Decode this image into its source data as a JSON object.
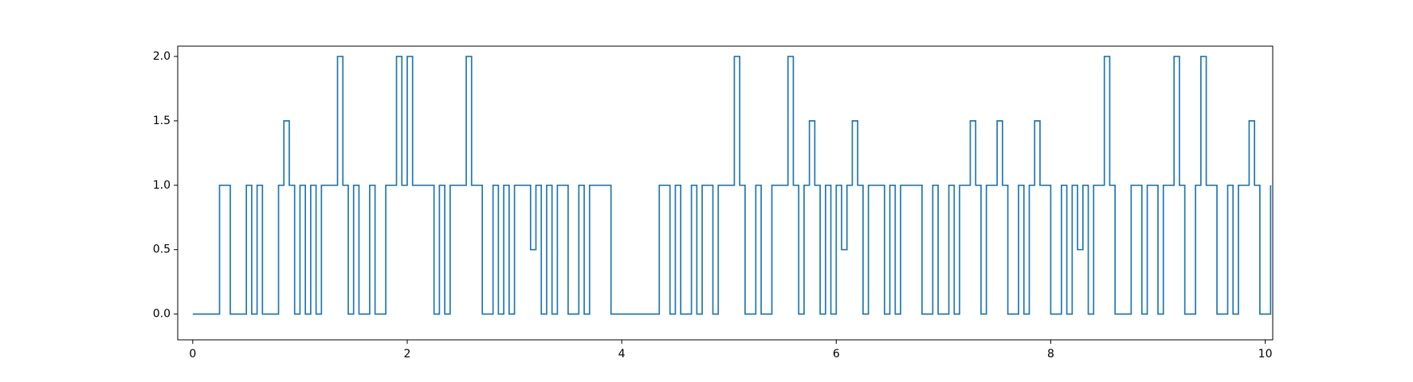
{
  "chart_data": {
    "type": "line",
    "step": "post",
    "color": "#1f77b4",
    "grid": false,
    "xlim": [
      -0.14,
      10.07
    ],
    "ylim": [
      -0.2,
      2.08
    ],
    "xticks": [
      0,
      2,
      4,
      6,
      8,
      10
    ],
    "yticks": [
      {
        "value": 0,
        "label": "0.0"
      },
      {
        "value": 0.5,
        "label": "0.5"
      },
      {
        "value": 1,
        "label": "1.0"
      },
      {
        "value": 1.5,
        "label": "1.5"
      },
      {
        "value": 2,
        "label": "2.0"
      }
    ],
    "x": [
      0,
      0.05,
      0.1,
      0.15,
      0.2,
      0.25,
      0.3,
      0.35,
      0.4,
      0.45,
      0.5,
      0.55,
      0.6,
      0.65,
      0.7,
      0.75,
      0.8,
      0.85,
      0.9,
      0.95,
      1,
      1.05,
      1.1,
      1.15,
      1.2,
      1.25,
      1.3,
      1.35,
      1.4,
      1.45,
      1.5,
      1.55,
      1.6,
      1.65,
      1.7,
      1.75,
      1.8,
      1.85,
      1.9,
      1.95,
      2,
      2.05,
      2.1,
      2.15,
      2.2,
      2.25,
      2.3,
      2.35,
      2.4,
      2.45,
      2.5,
      2.55,
      2.6,
      2.65,
      2.7,
      2.75,
      2.8,
      2.85,
      2.9,
      2.95,
      3,
      3.05,
      3.1,
      3.15,
      3.2,
      3.25,
      3.3,
      3.35,
      3.4,
      3.45,
      3.5,
      3.55,
      3.6,
      3.65,
      3.7,
      3.75,
      3.8,
      3.85,
      3.9,
      3.95,
      4,
      4.05,
      4.1,
      4.15,
      4.2,
      4.25,
      4.3,
      4.35,
      4.4,
      4.45,
      4.5,
      4.55,
      4.6,
      4.65,
      4.7,
      4.75,
      4.8,
      4.85,
      4.9,
      4.95,
      5,
      5.05,
      5.1,
      5.15,
      5.2,
      5.25,
      5.3,
      5.35,
      5.4,
      5.45,
      5.5,
      5.55,
      5.6,
      5.65,
      5.7,
      5.75,
      5.8,
      5.85,
      5.9,
      5.95,
      6,
      6.05,
      6.1,
      6.15,
      6.2,
      6.25,
      6.3,
      6.35,
      6.4,
      6.45,
      6.5,
      6.55,
      6.6,
      6.65,
      6.7,
      6.75,
      6.8,
      6.85,
      6.9,
      6.95,
      7,
      7.05,
      7.1,
      7.15,
      7.2,
      7.25,
      7.3,
      7.35,
      7.4,
      7.45,
      7.5,
      7.55,
      7.6,
      7.65,
      7.7,
      7.75,
      7.8,
      7.85,
      7.9,
      7.95,
      8,
      8.05,
      8.1,
      8.15,
      8.2,
      8.25,
      8.3,
      8.35,
      8.4,
      8.45,
      8.5,
      8.55,
      8.6,
      8.65,
      8.7,
      8.75,
      8.8,
      8.85,
      8.9,
      8.95,
      9,
      9.05,
      9.1,
      9.15,
      9.2,
      9.25,
      9.3,
      9.35,
      9.4,
      9.45,
      9.5,
      9.55,
      9.6,
      9.65,
      9.7,
      9.75,
      9.8,
      9.85,
      9.9,
      9.95,
      10,
      10.05
    ],
    "values": [
      0,
      0,
      0,
      0,
      0,
      1,
      1,
      0,
      0,
      0,
      1,
      0,
      1,
      0,
      0,
      0,
      1,
      1.5,
      1,
      0,
      1,
      0,
      1,
      0,
      1,
      1,
      1,
      2,
      1,
      0,
      1,
      0,
      0,
      1,
      0,
      0,
      1,
      1,
      2,
      1,
      2,
      1,
      1,
      1,
      1,
      0,
      1,
      0,
      1,
      1,
      1,
      2,
      1,
      1,
      0,
      0,
      1,
      0,
      1,
      0,
      1,
      1,
      1,
      0.5,
      1,
      0,
      1,
      0,
      1,
      1,
      0,
      0,
      1,
      0,
      1,
      1,
      1,
      1,
      0,
      0,
      0,
      0,
      0,
      0,
      0,
      0,
      0,
      1,
      1,
      0,
      1,
      0,
      0,
      1,
      0,
      1,
      1,
      0,
      1,
      1,
      1,
      2,
      1,
      0,
      0,
      1,
      0,
      0,
      1,
      1,
      1,
      2,
      1,
      0,
      1,
      1.5,
      1,
      0,
      1,
      0,
      1,
      0.5,
      1,
      1.5,
      1,
      0,
      1,
      1,
      1,
      0,
      1,
      0,
      1,
      1,
      1,
      1,
      0,
      0,
      1,
      0,
      0,
      1,
      0,
      1,
      1,
      1.5,
      1,
      0,
      1,
      1,
      1.5,
      1,
      0,
      0,
      1,
      0,
      1,
      1.5,
      1,
      1,
      0,
      0,
      1,
      0,
      1,
      0.5,
      1,
      0,
      1,
      1,
      2,
      1,
      0,
      0,
      0,
      1,
      1,
      0,
      1,
      1,
      0,
      1,
      1,
      2,
      1,
      0,
      0,
      1,
      2,
      1,
      1,
      0,
      0,
      1,
      0,
      1,
      1,
      1.5,
      1,
      0,
      0,
      1
    ]
  }
}
